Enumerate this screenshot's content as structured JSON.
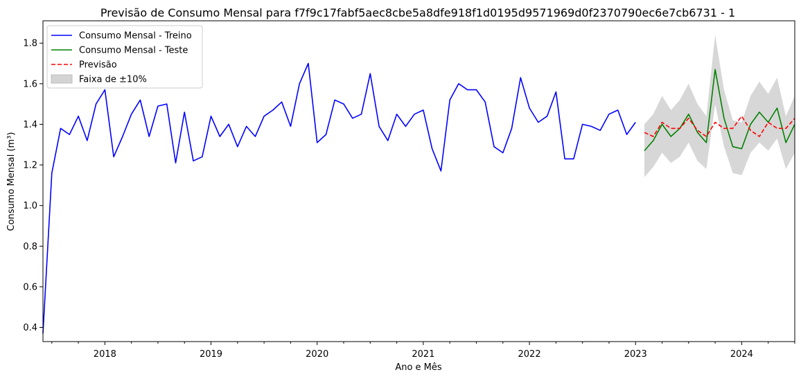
{
  "chart_data": {
    "type": "line",
    "title": "Previsão de Consumo Mensal para f7f9c17fabf5aec8cbe5a8dfe918f1d0195d9571969d0f2370790ec6e7cb6731 - 1",
    "xlabel": "Ano e Mês",
    "ylabel": "Consumo Mensal (m³)",
    "xlim": [
      "2017-06",
      "2024-07"
    ],
    "ylim": [
      0.33,
      1.91
    ],
    "x_ticks": [
      "2018",
      "2019",
      "2020",
      "2021",
      "2022",
      "2023",
      "2024"
    ],
    "y_ticks": [
      "0.4",
      "0.6",
      "0.8",
      "1.0",
      "1.2",
      "1.4",
      "1.6",
      "1.8"
    ],
    "grid": false,
    "legend_position": "top-left",
    "colors": {
      "train": "#0000ff",
      "test": "#008000",
      "forecast": "#ff0000",
      "band": "#d3d3d3"
    },
    "legend": [
      {
        "label": "Consumo Mensal - Treino",
        "kind": "line",
        "color": "#0000ff",
        "dash": false
      },
      {
        "label": "Consumo Mensal - Teste",
        "kind": "line",
        "color": "#008000",
        "dash": false
      },
      {
        "label": "Previsão",
        "kind": "line",
        "color": "#ff0000",
        "dash": true
      },
      {
        "label": "Faixa de ±10%",
        "kind": "patch",
        "color": "#d3d3d3",
        "dash": false
      }
    ],
    "series": [
      {
        "name": "Consumo Mensal - Treino",
        "key": "train",
        "x": [
          "2017-06",
          "2017-07",
          "2017-08",
          "2017-09",
          "2017-10",
          "2017-11",
          "2017-12",
          "2018-01",
          "2018-02",
          "2018-03",
          "2018-04",
          "2018-05",
          "2018-06",
          "2018-07",
          "2018-08",
          "2018-09",
          "2018-10",
          "2018-11",
          "2018-12",
          "2019-01",
          "2019-02",
          "2019-03",
          "2019-04",
          "2019-05",
          "2019-06",
          "2019-07",
          "2019-08",
          "2019-09",
          "2019-10",
          "2019-11",
          "2019-12",
          "2020-01",
          "2020-02",
          "2020-03",
          "2020-04",
          "2020-05",
          "2020-06",
          "2020-07",
          "2020-08",
          "2020-09",
          "2020-10",
          "2020-11",
          "2020-12",
          "2021-01",
          "2021-02",
          "2021-03",
          "2021-04",
          "2021-05",
          "2021-06",
          "2021-07",
          "2021-08",
          "2021-09",
          "2021-10",
          "2021-11",
          "2021-12",
          "2022-01",
          "2022-02",
          "2022-03",
          "2022-04",
          "2022-05",
          "2022-06",
          "2022-07",
          "2022-08",
          "2022-09",
          "2022-10",
          "2022-11",
          "2022-12",
          "2023-01"
        ],
        "values": [
          0.37,
          1.16,
          1.38,
          1.35,
          1.44,
          1.32,
          1.5,
          1.57,
          1.24,
          1.34,
          1.45,
          1.52,
          1.34,
          1.49,
          1.5,
          1.21,
          1.46,
          1.22,
          1.24,
          1.44,
          1.34,
          1.4,
          1.29,
          1.39,
          1.34,
          1.44,
          1.47,
          1.51,
          1.39,
          1.6,
          1.7,
          1.31,
          1.35,
          1.52,
          1.5,
          1.43,
          1.45,
          1.65,
          1.39,
          1.32,
          1.45,
          1.39,
          1.45,
          1.47,
          1.28,
          1.17,
          1.52,
          1.6,
          1.57,
          1.57,
          1.51,
          1.29,
          1.26,
          1.38,
          1.63,
          1.48,
          1.41,
          1.44,
          1.56,
          1.23,
          1.23,
          1.4,
          1.39,
          1.37,
          1.45,
          1.47,
          1.35,
          1.41
        ]
      },
      {
        "name": "Consumo Mensal - Teste",
        "key": "test",
        "x": [
          "2023-02",
          "2023-03",
          "2023-04",
          "2023-05",
          "2023-06",
          "2023-07",
          "2023-08",
          "2023-09",
          "2023-10",
          "2023-11",
          "2023-12",
          "2024-01",
          "2024-02",
          "2024-03",
          "2024-04",
          "2024-05",
          "2024-06",
          "2024-07"
        ],
        "values": [
          1.27,
          1.32,
          1.4,
          1.34,
          1.38,
          1.45,
          1.36,
          1.31,
          1.67,
          1.43,
          1.29,
          1.28,
          1.4,
          1.46,
          1.41,
          1.48,
          1.31,
          1.4
        ]
      },
      {
        "name": "Previsão",
        "key": "forecast",
        "x": [
          "2023-02",
          "2023-03",
          "2023-04",
          "2023-05",
          "2023-06",
          "2023-07",
          "2023-08",
          "2023-09",
          "2023-10",
          "2023-11",
          "2023-12",
          "2024-01",
          "2024-02",
          "2024-03",
          "2024-04",
          "2024-05",
          "2024-06",
          "2024-07"
        ],
        "values": [
          1.36,
          1.34,
          1.41,
          1.38,
          1.38,
          1.43,
          1.37,
          1.34,
          1.41,
          1.38,
          1.38,
          1.44,
          1.37,
          1.34,
          1.41,
          1.38,
          1.38,
          1.43
        ]
      }
    ],
    "band": {
      "name": "Faixa de ±10%",
      "based_on": "Consumo Mensal - Teste",
      "x": [
        "2023-02",
        "2023-03",
        "2023-04",
        "2023-05",
        "2023-06",
        "2023-07",
        "2023-08",
        "2023-09",
        "2023-10",
        "2023-11",
        "2023-12",
        "2024-01",
        "2024-02",
        "2024-03",
        "2024-04",
        "2024-05",
        "2024-06",
        "2024-07"
      ],
      "lower": [
        1.14,
        1.19,
        1.26,
        1.21,
        1.24,
        1.31,
        1.22,
        1.18,
        1.5,
        1.29,
        1.16,
        1.15,
        1.26,
        1.31,
        1.27,
        1.33,
        1.18,
        1.26
      ],
      "upper": [
        1.4,
        1.45,
        1.54,
        1.47,
        1.52,
        1.6,
        1.5,
        1.44,
        1.84,
        1.57,
        1.42,
        1.41,
        1.54,
        1.61,
        1.55,
        1.63,
        1.44,
        1.54
      ]
    }
  }
}
